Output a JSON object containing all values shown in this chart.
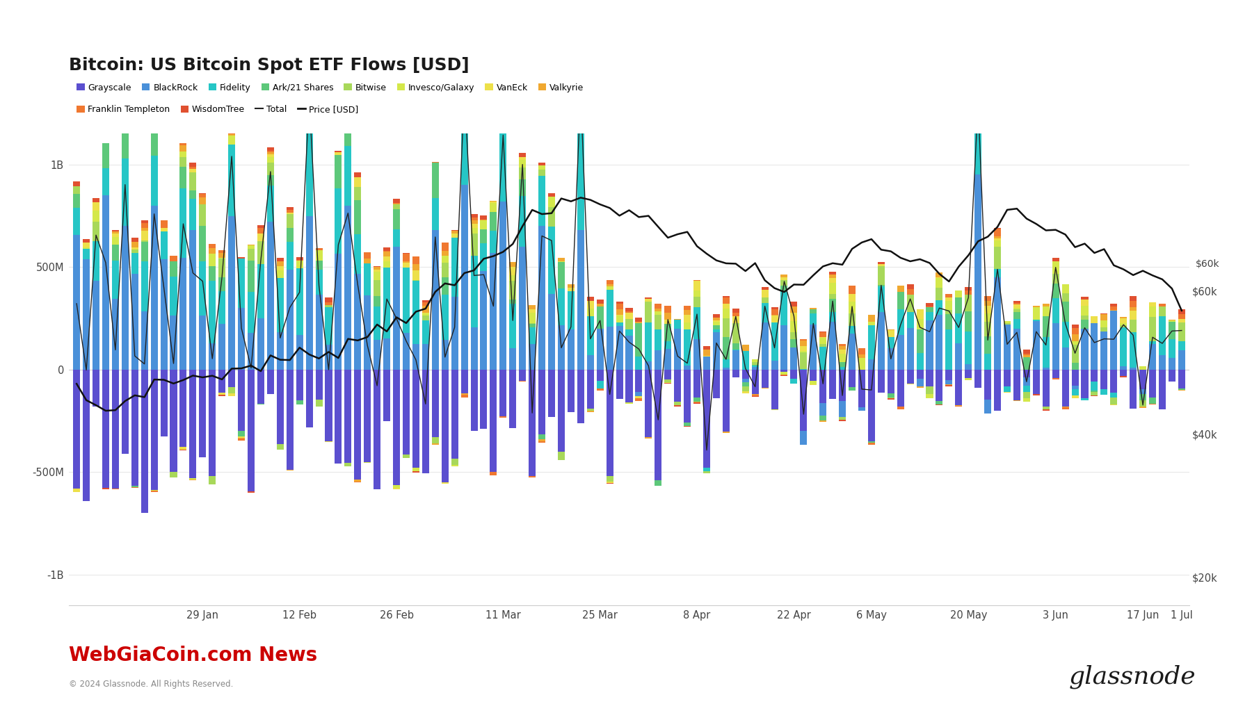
{
  "title": "Bitcoin: US Bitcoin Spot ETF Flows [USD]",
  "title_fontsize": 18,
  "background_color": "#ffffff",
  "plot_bg_color": "#ffffff",
  "grid_color": "#e8e8e8",
  "x_labels": [
    "29 Jan",
    "12 Feb",
    "26 Feb",
    "11 Mar",
    "25 Mar",
    "8 Apr",
    "22 Apr",
    "6 May",
    "20 May",
    "3 Jun",
    "17 Jun",
    "1 Jul"
  ],
  "ytick_labels_left": [
    "-1B",
    "-500M",
    "0",
    "500M",
    "1B"
  ],
  "ytick_labels_right": [
    "$20k",
    "$40k",
    "$60k"
  ],
  "legend_entries_row1": [
    {
      "label": "Grayscale",
      "color": "#5B4FCF"
    },
    {
      "label": "BlackRock",
      "color": "#4A90D9"
    },
    {
      "label": "Fidelity",
      "color": "#26C6C6"
    },
    {
      "label": "Ark/21 Shares",
      "color": "#5DC87A"
    },
    {
      "label": "Bitwise",
      "color": "#A8D85A"
    },
    {
      "label": "Invesco/Galaxy",
      "color": "#D4E84A"
    },
    {
      "label": "VanEck",
      "color": "#EDE04A"
    },
    {
      "label": "Valkyrie",
      "color": "#F0A830"
    }
  ],
  "legend_entries_row2": [
    {
      "label": "Franklin Templeton",
      "color": "#F07830"
    },
    {
      "label": "WisdomTree",
      "color": "#E05030"
    },
    {
      "label": "Total",
      "color": "#222222"
    },
    {
      "label": "Price [USD]",
      "color": "#111111"
    }
  ],
  "footer_left": "WebGiaCoin.com News",
  "footer_left_color": "#cc0000",
  "footer_copyright": "© 2024 Glassnode. All Rights Reserved.",
  "footer_brand": "glassnode"
}
